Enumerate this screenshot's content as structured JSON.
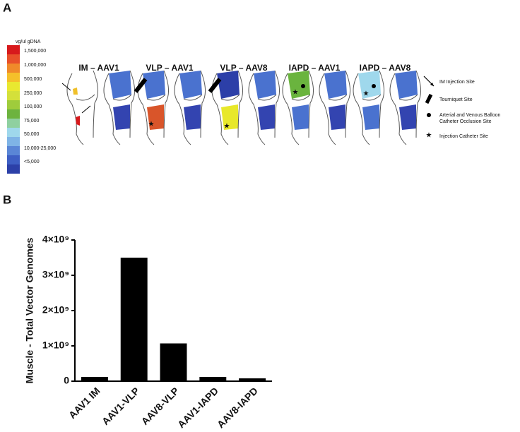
{
  "panel_a": {
    "label": "A",
    "scale_title": "vg/ul gDNA",
    "scale_labels": [
      "1,500,000",
      "1,000,000",
      "500,000",
      "250,000",
      "100,000",
      "75,000",
      "50,000",
      "10,000-25,000",
      "<5,000"
    ],
    "groups": [
      "IM – AAV1",
      "VLP – AAV1",
      "VLP – AAV8",
      "IAPD – AAV1",
      "IAPD – AAV8"
    ],
    "key": [
      "IM Injection Site",
      "Tourniquet Site",
      "Arterial and Venous Balloon",
      "Catheter Occlusion Site",
      "Injection Catheter Site"
    ]
  },
  "chart_data": {
    "type": "bar",
    "label": "B",
    "y_label": "Muscle - Total Vector Genomes",
    "categories": [
      "AAV1 IM",
      "AAV1-VLP",
      "AAV8-VLP",
      "AAV1-IAPD",
      "AAV8-IAPD"
    ],
    "values": [
      120000000,
      3500000000,
      1070000000,
      120000000,
      80000000
    ],
    "color": "#000000",
    "ylim": [
      0,
      4000000000
    ],
    "yticks": [
      0,
      {
        "value": 1000000000,
        "label": "1×10⁹"
      },
      {
        "value": 2000000000,
        "label": "2×10⁹"
      },
      {
        "value": 3000000000,
        "label": "3×10⁹"
      },
      {
        "value": 4000000000,
        "label": "4×10⁹"
      }
    ]
  }
}
